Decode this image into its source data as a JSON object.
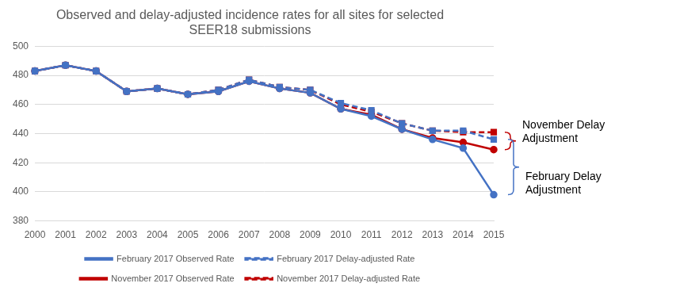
{
  "chart_data": {
    "type": "line",
    "title": "Observed and delay-adjusted incidence rates for all sites for selected SEER18 submissions",
    "categories": [
      "2000",
      "2001",
      "2002",
      "2003",
      "2004",
      "2005",
      "2006",
      "2007",
      "2008",
      "2009",
      "2010",
      "2011",
      "2012",
      "2013",
      "2014",
      "2015"
    ],
    "series": [
      {
        "name": "February 2017 Observed Rate",
        "color": "#4472c4",
        "marker": "circle",
        "line_style": "solid",
        "values": [
          483,
          487,
          483,
          469,
          471,
          467,
          469,
          476,
          471,
          468,
          457,
          452,
          443,
          436,
          430,
          398
        ]
      },
      {
        "name": "February 2017 Delay-adjusted Rate",
        "color": "#4472c4",
        "marker": "square",
        "line_style": "dashed",
        "values": [
          483,
          487,
          483,
          469,
          471,
          467,
          470,
          477,
          472,
          470,
          461,
          456,
          447,
          442,
          442,
          436
        ]
      },
      {
        "name": "November 2017 Observed Rate",
        "color": "#c00000",
        "marker": "circle",
        "line_style": "solid",
        "values": [
          483,
          487,
          483,
          469,
          471,
          467,
          469,
          476,
          471,
          468,
          457,
          453,
          443,
          437,
          434,
          429
        ]
      },
      {
        "name": "November 2017 Delay-adjusted Rate",
        "color": "#c00000",
        "marker": "square",
        "line_style": "dashed",
        "values": [
          483,
          487,
          483,
          469,
          471,
          467,
          470,
          477,
          472,
          470,
          460,
          455,
          447,
          442,
          441,
          441
        ]
      }
    ],
    "annotations": [
      {
        "text": "November Delay Adjustment",
        "color": "#c00000",
        "series": [
          "November 2017 Delay-adjusted Rate",
          "November 2017 Observed Rate"
        ]
      },
      {
        "text": "February Delay Adjustment",
        "color": "#4472c4",
        "series": [
          "February 2017 Delay-adjusted Rate",
          "February 2017 Observed Rate"
        ]
      }
    ],
    "ylim": [
      380,
      500
    ],
    "yticks": [
      380,
      400,
      420,
      440,
      460,
      480,
      500
    ],
    "grid": true,
    "legend": "bottom"
  }
}
